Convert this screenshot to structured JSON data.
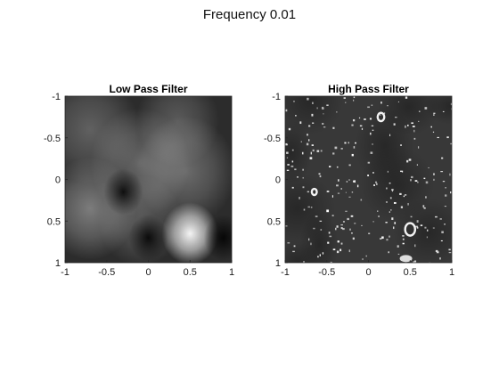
{
  "figure": {
    "suptitle": "Frequency 0.01"
  },
  "chart_data": [
    {
      "type": "heatmap",
      "title": "Low Pass Filter",
      "xlabel": "",
      "ylabel": "",
      "xlim": [
        -1,
        1
      ],
      "ylim": [
        1,
        -1
      ],
      "xticks": [
        "-1",
        "-0.5",
        "0",
        "0.5",
        "1"
      ],
      "yticks": [
        "-1",
        "-0.5",
        "0",
        "0.5",
        "1"
      ],
      "colormap": "gray",
      "blobs": [
        {
          "x": 0.5,
          "y": 0.65,
          "intensity": 0.95,
          "spread": 0.17
        },
        {
          "x": -0.7,
          "y": 0.35,
          "intensity": 0.38,
          "spread": 0.28
        },
        {
          "x": -0.1,
          "y": -0.2,
          "intensity": 0.28,
          "spread": 0.3
        },
        {
          "x": 0.45,
          "y": -0.1,
          "intensity": 0.3,
          "spread": 0.3
        },
        {
          "x": -0.7,
          "y": -0.6,
          "intensity": 0.25,
          "spread": 0.3
        },
        {
          "x": 0.35,
          "y": -0.7,
          "intensity": 0.22,
          "spread": 0.25
        },
        {
          "x": -0.1,
          "y": 0.5,
          "intensity": 0.22,
          "spread": 0.25
        }
      ],
      "dark_spots": [
        {
          "x": 0.0,
          "y": 0.7
        },
        {
          "x": 0.9,
          "y": 0.7
        },
        {
          "x": -0.3,
          "y": 0.15
        }
      ]
    },
    {
      "type": "heatmap",
      "title": "High Pass Filter",
      "xlabel": "",
      "ylabel": "",
      "xlim": [
        -1,
        1
      ],
      "ylim": [
        1,
        -1
      ],
      "xticks": [
        "-1",
        "-0.5",
        "0",
        "0.5",
        "1"
      ],
      "yticks": [
        "-1",
        "-0.5",
        "0",
        "0.5",
        "1"
      ],
      "colormap": "gray",
      "background_level": 0.22,
      "rings": [
        {
          "x": 0.5,
          "y": 0.6,
          "r": 0.06
        },
        {
          "x": 0.15,
          "y": -0.75,
          "r": 0.04
        },
        {
          "x": -0.65,
          "y": 0.15,
          "r": 0.03
        }
      ],
      "bright_patch": {
        "x": 0.45,
        "y": 0.95
      }
    }
  ]
}
